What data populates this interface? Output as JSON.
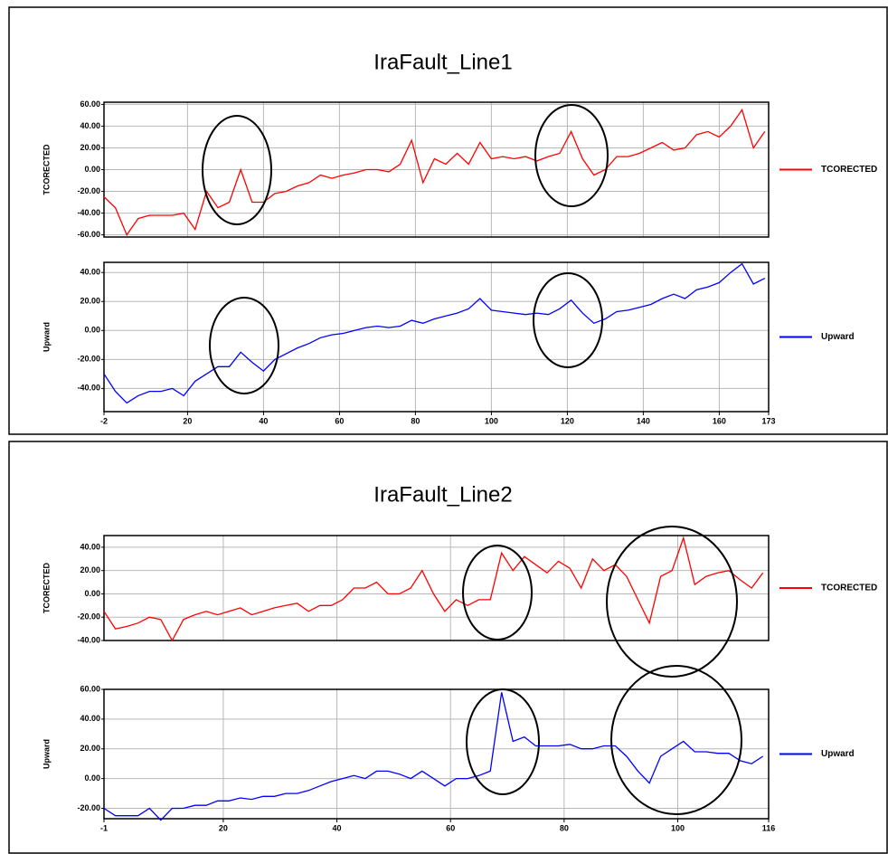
{
  "chart_data": [
    {
      "type": "line",
      "title": "IraFault_Line1",
      "x": [
        -2,
        1,
        4,
        7,
        10,
        13,
        16,
        19,
        22,
        25,
        28,
        31,
        34,
        37,
        40,
        43,
        46,
        49,
        52,
        55,
        58,
        61,
        64,
        67,
        70,
        73,
        76,
        79,
        82,
        85,
        88,
        91,
        94,
        97,
        100,
        103,
        106,
        109,
        112,
        115,
        118,
        121,
        124,
        127,
        130,
        133,
        136,
        139,
        142,
        145,
        148,
        151,
        154,
        157,
        160,
        163,
        166,
        169,
        172
      ],
      "xlim": [
        -2,
        173
      ],
      "xticks": [
        -2,
        20,
        40,
        60,
        80,
        100,
        120,
        140,
        160,
        173
      ],
      "grid": true,
      "panels": [
        {
          "ylabel": "TCORECTED",
          "ylim": [
            -62,
            62
          ],
          "yticks": [
            {
              "value": -60,
              "label": "-60.00"
            },
            {
              "value": -40,
              "label": "-40.00"
            },
            {
              "value": -20,
              "label": "-20.00"
            },
            {
              "value": 0,
              "label": "0.00"
            },
            {
              "value": 20,
              "label": "20.00"
            },
            {
              "value": 40,
              "label": "40.00"
            },
            {
              "value": 60,
              "label": "60.00"
            }
          ],
          "series": [
            {
              "name": "TCORECTED",
              "color": "#ff0000",
              "values": [
                -25,
                -35,
                -60,
                -45,
                -42,
                -42,
                -42,
                -40,
                -55,
                -20,
                -35,
                -30,
                0,
                -30,
                -30,
                -22,
                -20,
                -15,
                -12,
                -5,
                -8,
                -5,
                -3,
                0,
                0,
                -2,
                5,
                27,
                -12,
                10,
                5,
                15,
                5,
                25,
                10,
                12,
                10,
                12,
                8,
                12,
                15,
                35,
                10,
                -5,
                0,
                12,
                12,
                15,
                20,
                25,
                18,
                20,
                32,
                35,
                30,
                40,
                55,
                20,
                35
              ]
            }
          ]
        },
        {
          "ylabel": "Upward",
          "ylim": [
            -56,
            47
          ],
          "yticks": [
            {
              "value": -40,
              "label": "-40.00"
            },
            {
              "value": -20,
              "label": "-20.00"
            },
            {
              "value": 0,
              "label": "0.00"
            },
            {
              "value": 20,
              "label": "20.00"
            },
            {
              "value": 40,
              "label": "40.00"
            }
          ],
          "series": [
            {
              "name": "Upward",
              "color": "#0000ff",
              "values": [
                -30,
                -42,
                -50,
                -45,
                -42,
                -42,
                -40,
                -45,
                -35,
                -30,
                -25,
                -25,
                -15,
                -22,
                -28,
                -20,
                -16,
                -12,
                -9,
                -5,
                -3,
                -2,
                0,
                2,
                3,
                2,
                3,
                7,
                5,
                8,
                10,
                12,
                15,
                22,
                14,
                13,
                12,
                11,
                12,
                11,
                15,
                21,
                12,
                5,
                8,
                13,
                14,
                16,
                18,
                22,
                25,
                22,
                28,
                30,
                33,
                40,
                46,
                32,
                36
              ]
            }
          ]
        }
      ]
    },
    {
      "type": "line",
      "title": "IraFault_Line2",
      "x": [
        -1,
        1,
        3,
        5,
        7,
        9,
        11,
        13,
        15,
        17,
        19,
        21,
        23,
        25,
        27,
        29,
        31,
        33,
        35,
        37,
        39,
        41,
        43,
        45,
        47,
        49,
        51,
        53,
        55,
        57,
        59,
        61,
        63,
        65,
        67,
        69,
        71,
        73,
        75,
        77,
        79,
        81,
        83,
        85,
        87,
        89,
        91,
        93,
        95,
        97,
        99,
        101,
        103,
        105,
        107,
        109,
        111,
        113,
        115
      ],
      "xlim": [
        -1,
        116
      ],
      "xticks": [
        -1,
        20,
        40,
        60,
        80,
        100,
        116
      ],
      "grid": true,
      "panels": [
        {
          "ylabel": "TCORECTED",
          "ylim": [
            -40,
            50
          ],
          "yticks": [
            {
              "value": -40,
              "label": "-40.00"
            },
            {
              "value": -20,
              "label": "-20.00"
            },
            {
              "value": 0,
              "label": "0.00"
            },
            {
              "value": 20,
              "label": "20.00"
            },
            {
              "value": 40,
              "label": "40.00"
            }
          ],
          "series": [
            {
              "name": "TCORECTED",
              "color": "#ff0000",
              "values": [
                -15,
                -30,
                -28,
                -25,
                -20,
                -22,
                -40,
                -22,
                -18,
                -15,
                -18,
                -15,
                -12,
                -18,
                -15,
                -12,
                -10,
                -8,
                -15,
                -10,
                -10,
                -5,
                5,
                5,
                10,
                0,
                0,
                5,
                20,
                0,
                -15,
                -5,
                -10,
                -5,
                -5,
                35,
                20,
                32,
                25,
                18,
                28,
                22,
                5,
                30,
                20,
                25,
                15,
                -5,
                -25,
                15,
                20,
                48,
                8,
                15,
                18,
                20,
                12,
                5,
                18
              ]
            }
          ]
        },
        {
          "ylabel": "Upward",
          "ylim": [
            -27,
            60
          ],
          "yticks": [
            {
              "value": -20,
              "label": "-20.00"
            },
            {
              "value": 0,
              "label": "0.00"
            },
            {
              "value": 20,
              "label": "20.00"
            },
            {
              "value": 40,
              "label": "40.00"
            },
            {
              "value": 60,
              "label": "60.00"
            }
          ],
          "series": [
            {
              "name": "Upward",
              "color": "#0000ff",
              "values": [
                -20,
                -25,
                -25,
                -25,
                -20,
                -28,
                -20,
                -20,
                -18,
                -18,
                -15,
                -15,
                -13,
                -14,
                -12,
                -12,
                -10,
                -10,
                -8,
                -5,
                -2,
                0,
                2,
                0,
                5,
                5,
                3,
                0,
                5,
                0,
                -5,
                0,
                0,
                2,
                5,
                58,
                25,
                28,
                22,
                22,
                22,
                23,
                20,
                20,
                22,
                22,
                15,
                5,
                -3,
                15,
                20,
                25,
                18,
                18,
                17,
                17,
                12,
                10,
                15
              ]
            }
          ]
        }
      ]
    }
  ]
}
